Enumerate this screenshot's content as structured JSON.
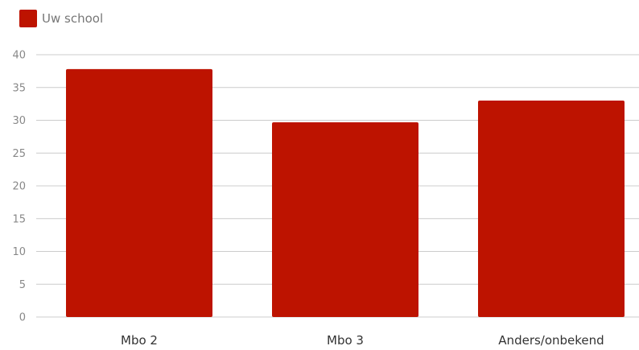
{
  "chart_data": {
    "type": "bar",
    "categories": [
      "Mbo 2",
      "Mbo 3",
      "Anders/onbekend"
    ],
    "series": [
      {
        "name": "Uw school",
        "color": "#bd1300",
        "values": [
          37.8,
          29.7,
          33.0
        ]
      }
    ],
    "yticks": [
      "0",
      "5",
      "10",
      "15",
      "20",
      "25",
      "30",
      "35",
      "40"
    ],
    "ylim": [
      0,
      40
    ],
    "grid": true,
    "legend_position": "top-left"
  }
}
